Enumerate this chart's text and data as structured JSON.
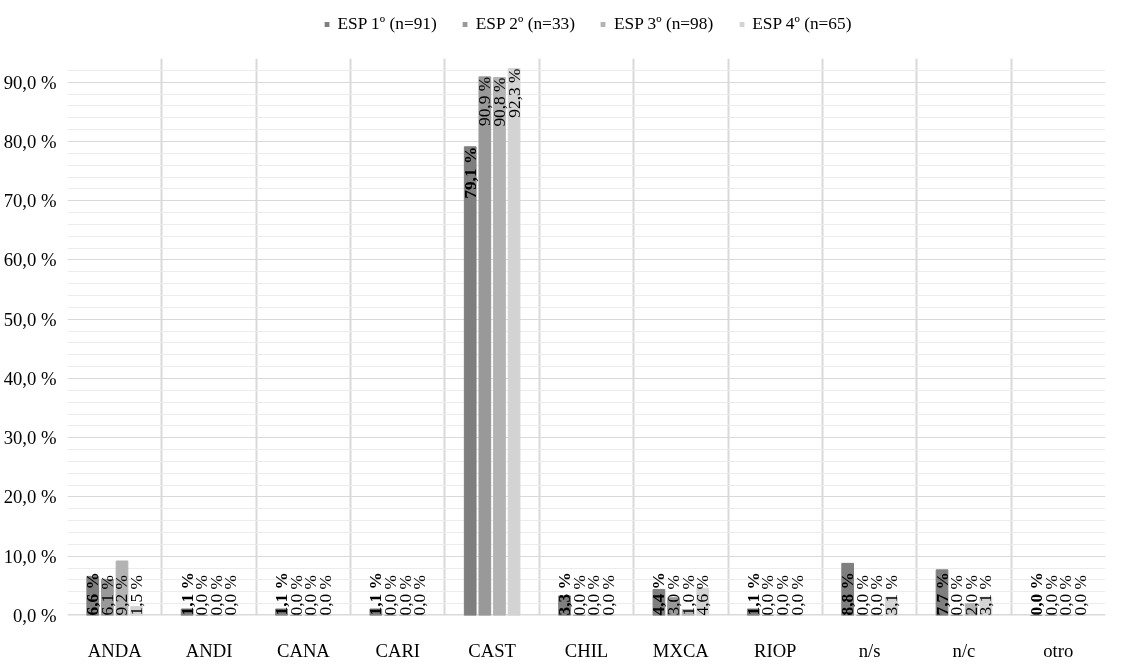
{
  "chart_data": {
    "type": "bar",
    "categories": [
      "ANDA",
      "ANDI",
      "CANA",
      "CARI",
      "CAST",
      "CHIL",
      "MXCA",
      "RIOP",
      "n/s",
      "n/c",
      "otro"
    ],
    "series": [
      {
        "name": "ESP 1º (n=91)",
        "color": "#7f7f7f",
        "values": [
          6.6,
          1.1,
          1.1,
          1.1,
          79.1,
          3.3,
          4.4,
          1.1,
          8.8,
          7.7,
          0.0
        ],
        "value_labels": [
          "6,6 %",
          "1,1 %",
          "1,1 %",
          "1,1 %",
          "79,1 %",
          "3,3 %",
          "4,4 %",
          "1,1 %",
          "8,8 %",
          "7,7 %",
          "0,0 %"
        ]
      },
      {
        "name": "ESP 2º (n=33)",
        "color": "#999999",
        "values": [
          6.1,
          0.0,
          0.0,
          0.0,
          90.9,
          0.0,
          3.0,
          0.0,
          0.0,
          0.0,
          0.0
        ],
        "value_labels": [
          "6,1 %",
          "0,0 %",
          "0,0 %",
          "0,0 %",
          "90,9 %",
          "0,0 %",
          "3,0 %",
          "0,0 %",
          "0,0 %",
          "0,0 %",
          "0,0 %"
        ]
      },
      {
        "name": "ESP 3º (n=98)",
        "color": "#b3b3b3",
        "values": [
          9.2,
          0.0,
          0.0,
          0.0,
          90.8,
          0.0,
          1.0,
          0.0,
          0.0,
          2.0,
          0.0
        ],
        "value_labels": [
          "9,2 %",
          "0,0 %",
          "0,0 %",
          "0,0 %",
          "90,8 %",
          "0,0 %",
          "1,0 %",
          "0,0 %",
          "0,0 %",
          "2,0 %",
          "0,0 %"
        ]
      },
      {
        "name": "ESP 4º (n=65)",
        "color": "#d3d3d3",
        "values": [
          1.5,
          0.0,
          0.0,
          0.0,
          92.3,
          0.0,
          4.6,
          0.0,
          3.1,
          3.1,
          0.0
        ],
        "value_labels": [
          "1,5 %",
          "0,0 %",
          "0,0 %",
          "0,0 %",
          "92,3 %",
          "0,0 %",
          "4,6 %",
          "0,0 %",
          "3,1 %",
          "3,1 %",
          "0,0 %"
        ]
      }
    ],
    "ylim": [
      0,
      94
    ],
    "yticks": [
      {
        "value": 0,
        "label": "0,0 %"
      },
      {
        "value": 10,
        "label": "10,0 %"
      },
      {
        "value": 20,
        "label": "20,0 %"
      },
      {
        "value": 30,
        "label": "30,0 %"
      },
      {
        "value": 40,
        "label": "40,0 %"
      },
      {
        "value": 50,
        "label": "50,0 %"
      },
      {
        "value": 60,
        "label": "60,0 %"
      },
      {
        "value": 70,
        "label": "70,0 %"
      },
      {
        "value": 80,
        "label": "80,0 %"
      },
      {
        "value": 90,
        "label": "90,0 %"
      }
    ],
    "grid": true,
    "legend": "top"
  }
}
